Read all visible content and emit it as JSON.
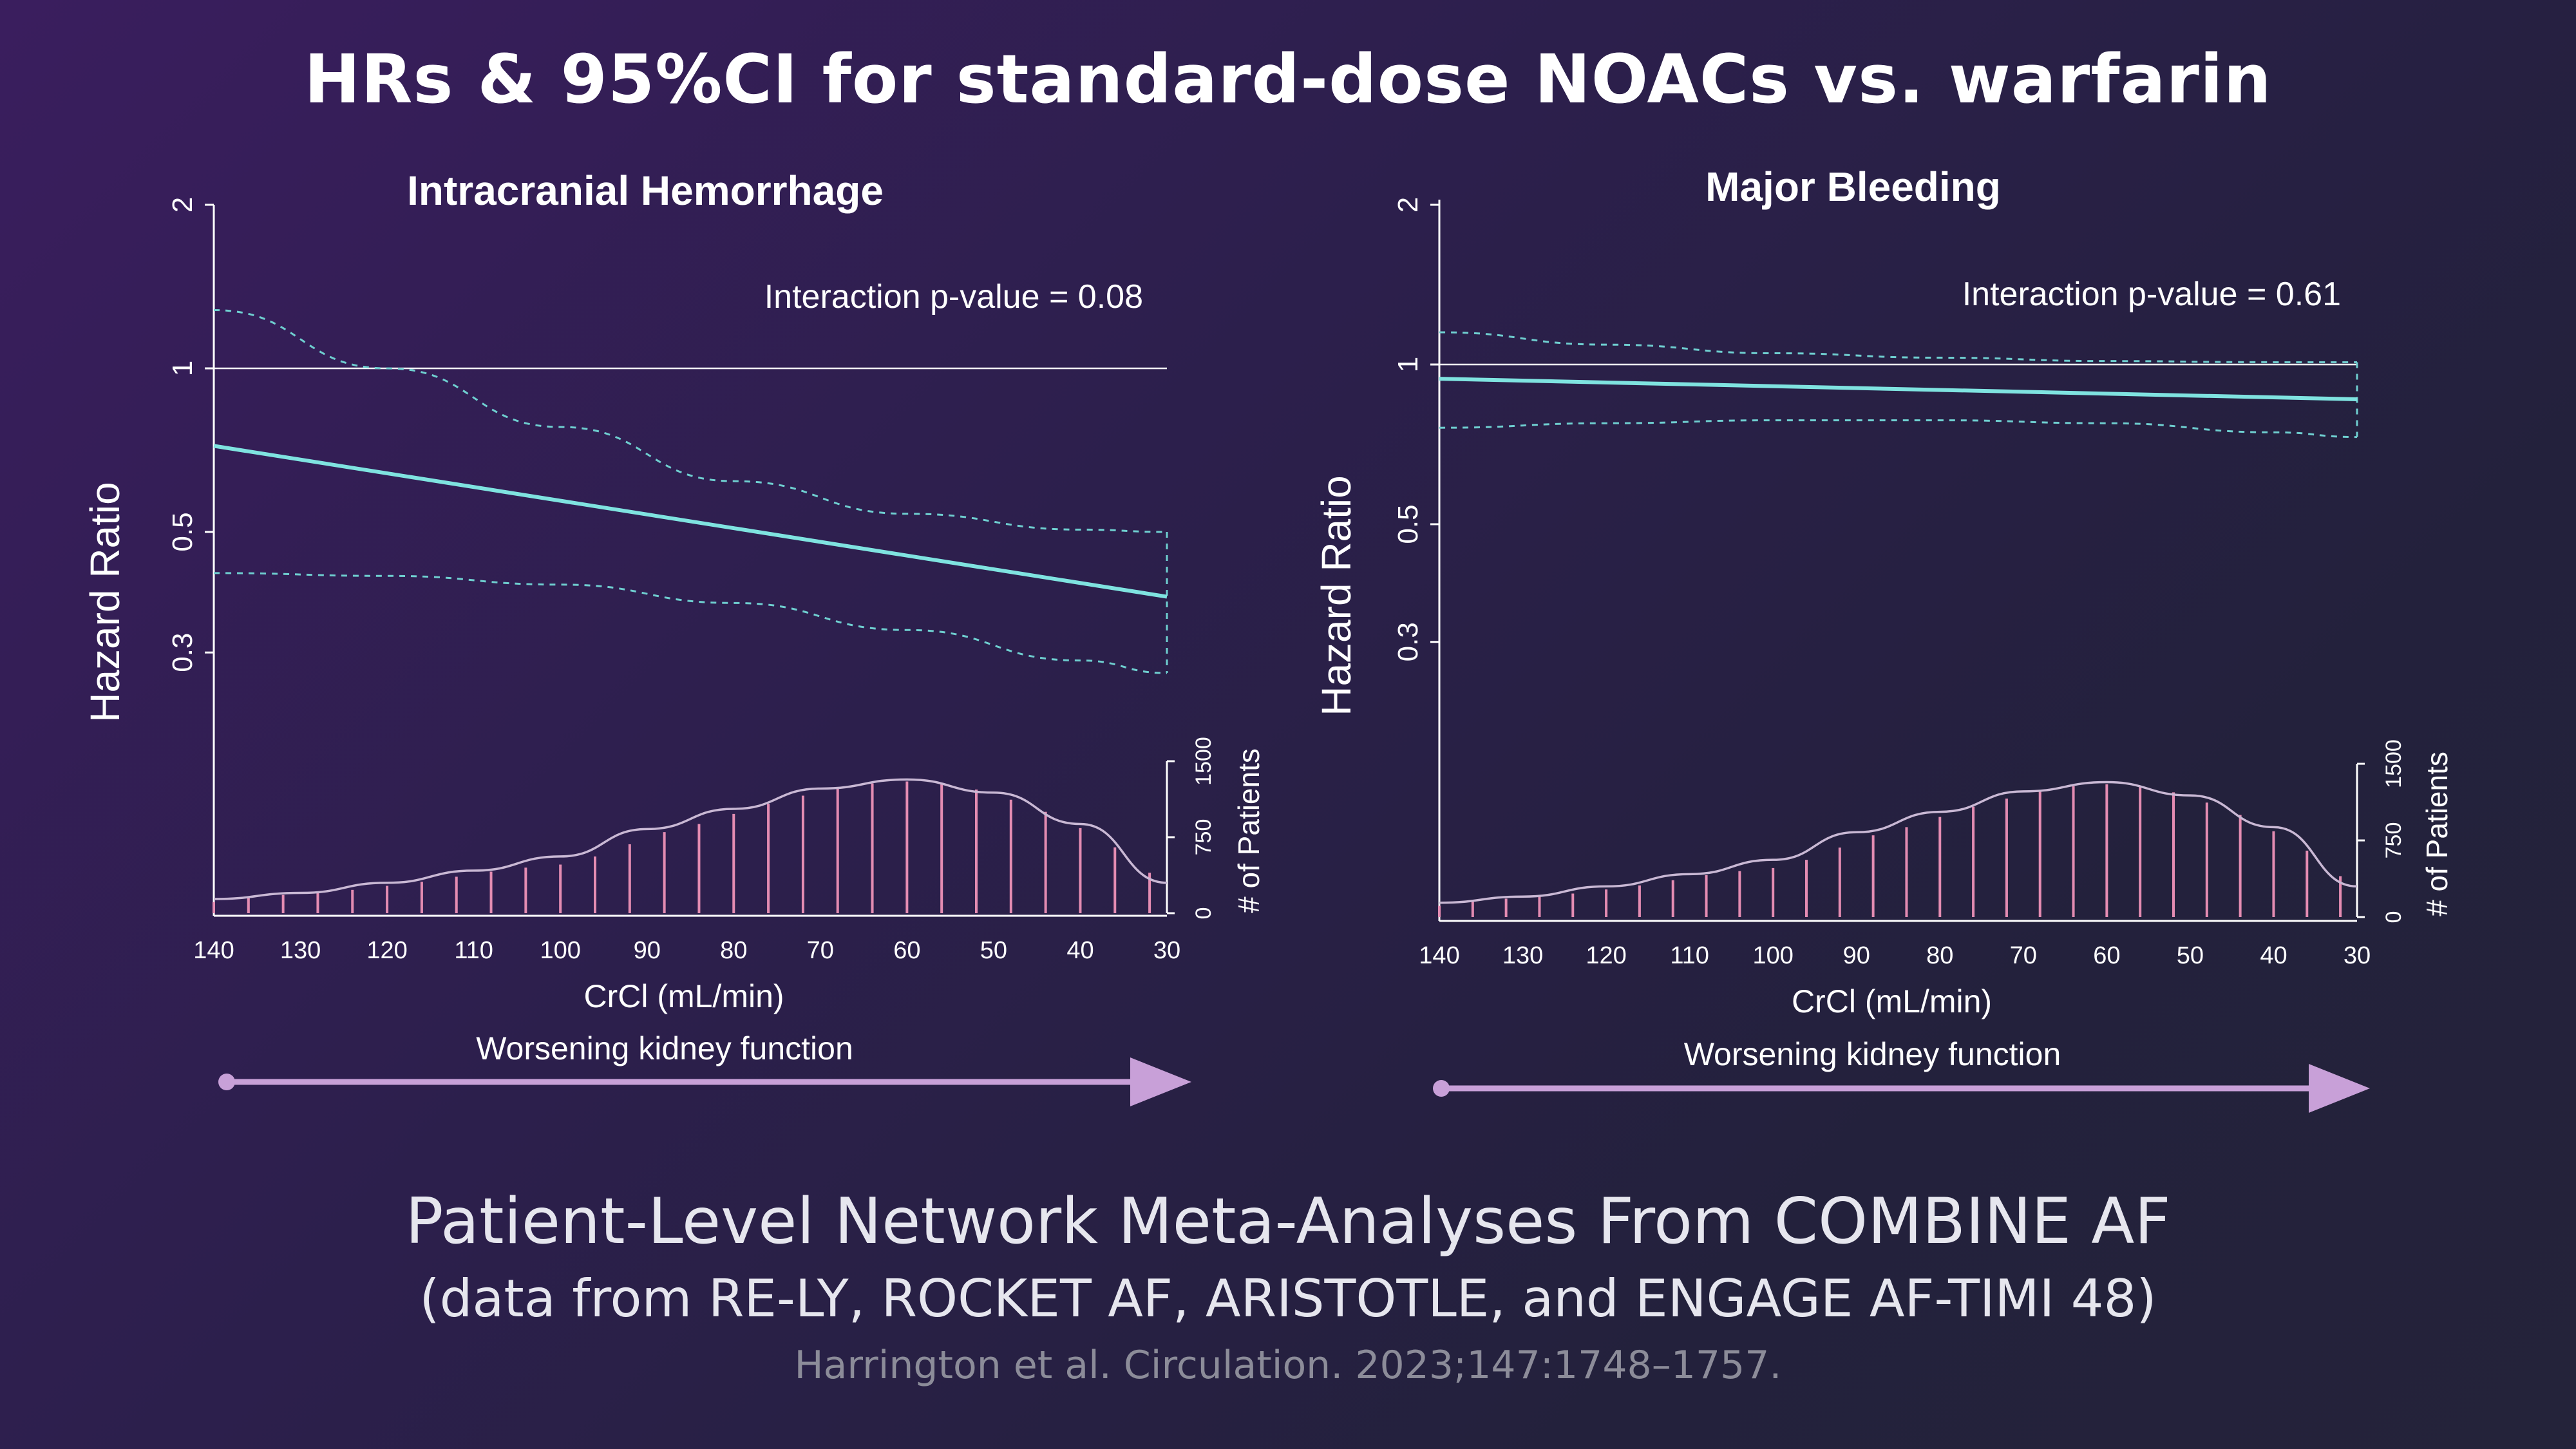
{
  "slide": {
    "title": "HRs & 95%CI for standard-dose NOACs vs. warfarin",
    "footer_main": "Patient-Level Network Meta-Analyses From COMBINE AF",
    "footer_sub": "(data from RE-LY, ROCKET AF, ARISTOTLE, and ENGAGE AF-TIMI 48)",
    "footer_citation": "Harrington et al. Circulation. 2023;147:1748–1757."
  },
  "colors": {
    "hr_line": "#7fe3e0",
    "ci_line": "#6fcfd0",
    "reference_line": "#ffffff",
    "histogram_bars": "#e48cb2",
    "density_curve": "#c9b8d4",
    "arrow": "#c8a0d8"
  },
  "chart_data": [
    {
      "type": "line",
      "title": "Intracranial Hemorrhage",
      "annotation": "Interaction p-value = 0.08",
      "xlabel": "CrCl (mL/min)",
      "ylabel": "Hazard Ratio",
      "y_scale": "log",
      "xlim": [
        140,
        30
      ],
      "ylim": [
        0.3,
        2
      ],
      "x_ticks": [
        140,
        130,
        120,
        110,
        100,
        90,
        80,
        70,
        60,
        50,
        40,
        30
      ],
      "y_ticks": [
        0.3,
        0.5,
        1,
        2
      ],
      "reference_line": 1,
      "series": [
        {
          "x": [
            140,
            30
          ],
          "values": [
            0.72,
            0.38
          ]
        },
        {
          "x": [
            140,
            120,
            100,
            80,
            60,
            40,
            30
          ],
          "values": [
            1.28,
            1.0,
            0.78,
            0.62,
            0.54,
            0.505,
            0.5
          ]
        },
        {
          "x": [
            140,
            120,
            100,
            80,
            60,
            40,
            30
          ],
          "values": [
            0.42,
            0.415,
            0.4,
            0.37,
            0.33,
            0.29,
            0.275
          ]
        }
      ],
      "secondary_axis": {
        "label": "# of Patients",
        "ticks": [
          0,
          750,
          1500
        ],
        "ylim": [
          0,
          1500
        ]
      },
      "histogram": {
        "x": [
          140,
          136,
          132,
          128,
          124,
          120,
          116,
          112,
          108,
          104,
          100,
          96,
          92,
          88,
          84,
          80,
          76,
          72,
          68,
          64,
          60,
          56,
          52,
          48,
          44,
          40,
          36,
          32
        ],
        "values": [
          110,
          150,
          180,
          200,
          230,
          270,
          310,
          360,
          410,
          450,
          480,
          560,
          680,
          800,
          880,
          980,
          1080,
          1160,
          1230,
          1280,
          1300,
          1280,
          1220,
          1120,
          1000,
          840,
          650,
          400
        ],
        "density_x": [
          140,
          130,
          120,
          110,
          100,
          90,
          80,
          70,
          60,
          50,
          40,
          30
        ],
        "density_values": [
          140,
          200,
          300,
          420,
          560,
          830,
          1030,
          1230,
          1320,
          1190,
          880,
          300
        ]
      },
      "arrow_label": "Worsening kidney function"
    },
    {
      "type": "line",
      "title": "Major Bleeding",
      "annotation": "Interaction p-value = 0.61",
      "xlabel": "CrCl (mL/min)",
      "ylabel": "Hazard Ratio",
      "y_scale": "log",
      "xlim": [
        140,
        30
      ],
      "ylim": [
        0.3,
        2
      ],
      "x_ticks": [
        140,
        130,
        120,
        110,
        100,
        90,
        80,
        70,
        60,
        50,
        40,
        30
      ],
      "y_ticks": [
        0.3,
        0.5,
        1,
        2
      ],
      "reference_line": 1,
      "series": [
        {
          "x": [
            140,
            30
          ],
          "values": [
            0.94,
            0.86
          ]
        },
        {
          "x": [
            140,
            120,
            100,
            80,
            60,
            40,
            30
          ],
          "values": [
            1.15,
            1.09,
            1.05,
            1.03,
            1.015,
            1.01,
            1.01
          ]
        },
        {
          "x": [
            140,
            120,
            100,
            80,
            60,
            40,
            30
          ],
          "values": [
            0.76,
            0.775,
            0.785,
            0.785,
            0.775,
            0.745,
            0.73
          ]
        }
      ],
      "secondary_axis": {
        "label": "# of Patients",
        "ticks": [
          0,
          750,
          1500
        ],
        "ylim": [
          0,
          1500
        ]
      },
      "histogram": {
        "x": [
          140,
          136,
          132,
          128,
          124,
          120,
          116,
          112,
          108,
          104,
          100,
          96,
          92,
          88,
          84,
          80,
          76,
          72,
          68,
          64,
          60,
          56,
          52,
          48,
          44,
          40,
          36,
          32
        ],
        "values": [
          110,
          150,
          180,
          200,
          230,
          270,
          310,
          360,
          410,
          450,
          480,
          560,
          680,
          800,
          880,
          980,
          1080,
          1160,
          1230,
          1280,
          1300,
          1280,
          1220,
          1120,
          1000,
          840,
          650,
          400
        ],
        "density_x": [
          140,
          130,
          120,
          110,
          100,
          90,
          80,
          70,
          60,
          50,
          40,
          30
        ],
        "density_values": [
          140,
          200,
          300,
          420,
          560,
          830,
          1030,
          1230,
          1320,
          1190,
          880,
          300
        ]
      },
      "arrow_label": "Worsening kidney function"
    }
  ]
}
